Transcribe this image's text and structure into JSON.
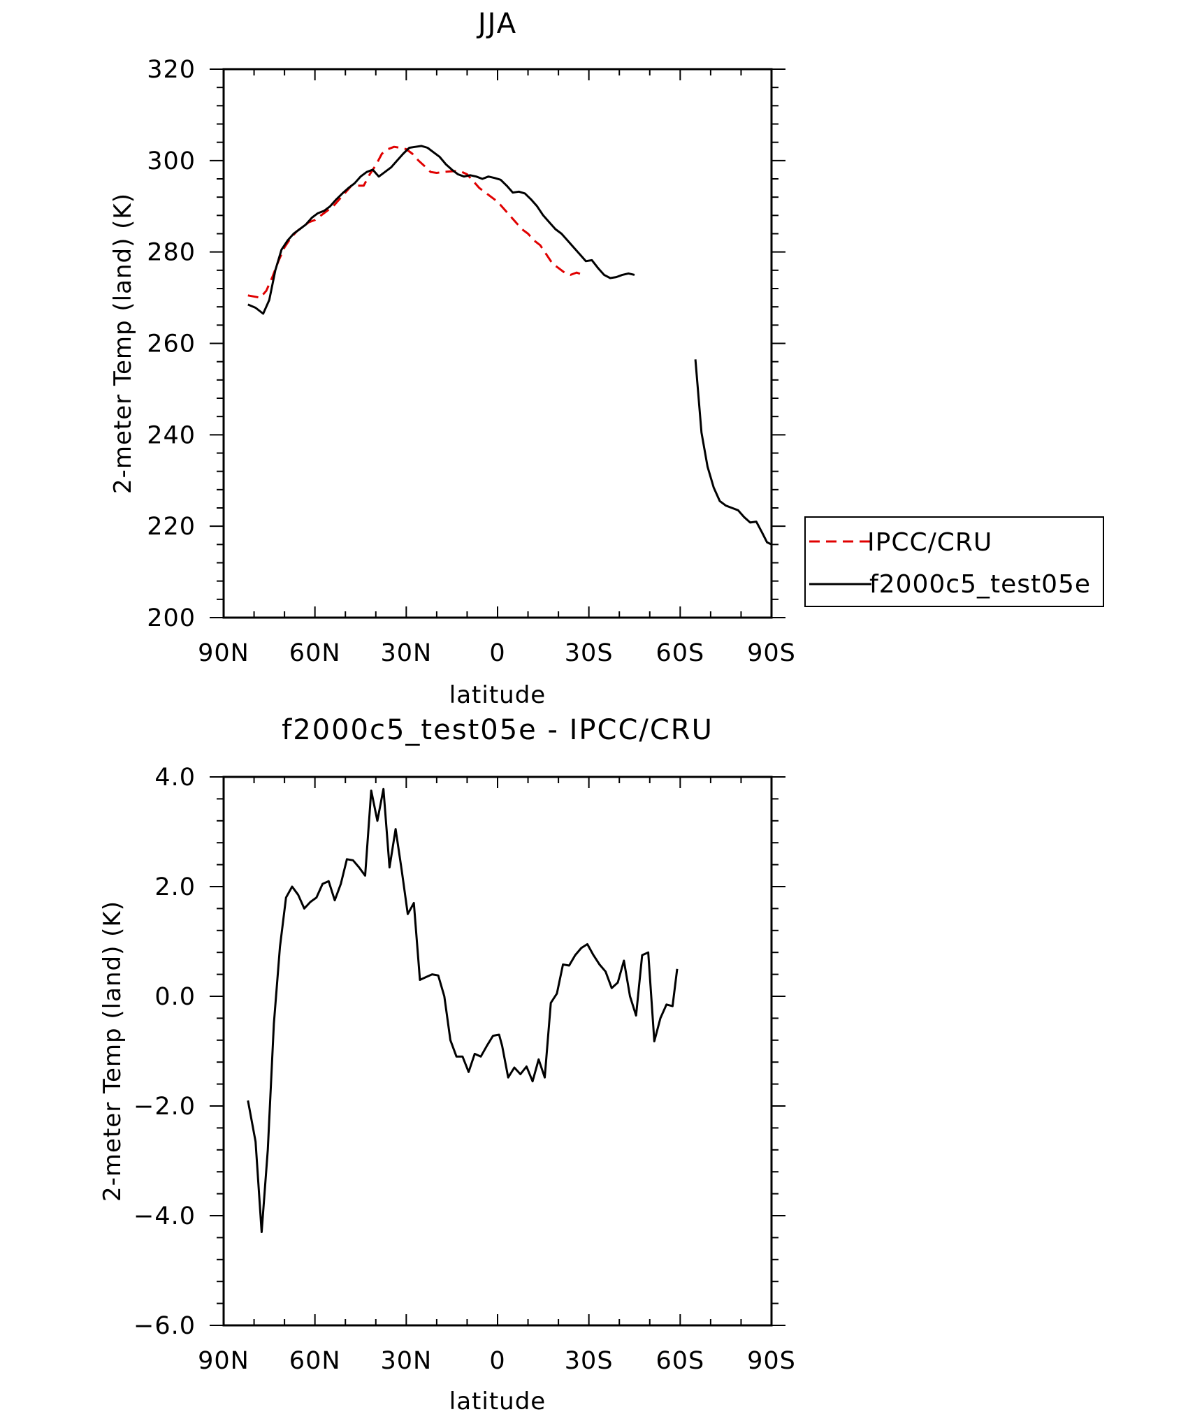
{
  "chart_data": [
    {
      "type": "line",
      "title": "JJA",
      "xlabel": "latitude",
      "ylabel": "2-meter Temp (land) (K)",
      "xlim": [
        90,
        -90
      ],
      "ylim": [
        200,
        320
      ],
      "x_ticks": [
        {
          "value": 90,
          "label": "90N"
        },
        {
          "value": 60,
          "label": "60N"
        },
        {
          "value": 30,
          "label": "30N"
        },
        {
          "value": 0,
          "label": "0"
        },
        {
          "value": -30,
          "label": "30S"
        },
        {
          "value": -60,
          "label": "60S"
        },
        {
          "value": -90,
          "label": "90S"
        }
      ],
      "y_ticks": [
        {
          "value": 200,
          "label": "200"
        },
        {
          "value": 220,
          "label": "220"
        },
        {
          "value": 240,
          "label": "240"
        },
        {
          "value": 260,
          "label": "260"
        },
        {
          "value": 280,
          "label": "280"
        },
        {
          "value": 300,
          "label": "300"
        },
        {
          "value": 320,
          "label": "320"
        }
      ],
      "legend": {
        "position": "right"
      },
      "series": [
        {
          "name": "IPCC/CRU",
          "color": "#e00000",
          "dash": "dashed",
          "points": [
            [
              82,
              270.5
            ],
            [
              78,
              270
            ],
            [
              76,
              271.5
            ],
            [
              74,
              274.5
            ],
            [
              72,
              278
            ],
            [
              70,
              281
            ],
            [
              68,
              283
            ],
            [
              66,
              284.5
            ],
            [
              64,
              285.5
            ],
            [
              62,
              286.5
            ],
            [
              60,
              287
            ],
            [
              58,
              288
            ],
            [
              56,
              289
            ],
            [
              54,
              290
            ],
            [
              52,
              291.5
            ],
            [
              50,
              293
            ],
            [
              48,
              294.5
            ],
            [
              46,
              294.5
            ],
            [
              44,
              294.5
            ],
            [
              42,
              297
            ],
            [
              40,
              299
            ],
            [
              38,
              301.5
            ],
            [
              36,
              302.5
            ],
            [
              34,
              303
            ],
            [
              32,
              302.8
            ],
            [
              30,
              302.5
            ],
            [
              28,
              301.5
            ],
            [
              26,
              300
            ],
            [
              24,
              298.8
            ],
            [
              22,
              297.5
            ],
            [
              20,
              297.3
            ],
            [
              18,
              297.5
            ],
            [
              16,
              297.6
            ],
            [
              14,
              297.7
            ],
            [
              12,
              297.6
            ],
            [
              10,
              297
            ],
            [
              8,
              295.5
            ],
            [
              6,
              294
            ],
            [
              4,
              293
            ],
            [
              2,
              292
            ],
            [
              0,
              291
            ],
            [
              -2,
              289.5
            ],
            [
              -4,
              288
            ],
            [
              -6,
              286.5
            ],
            [
              -8,
              285
            ],
            [
              -10,
              284
            ],
            [
              -12,
              282.5
            ],
            [
              -14,
              281.5
            ],
            [
              -16,
              279.5
            ],
            [
              -18,
              277.5
            ],
            [
              -20,
              276.5
            ],
            [
              -22,
              275.5
            ],
            [
              -24,
              275
            ],
            [
              -26,
              275.5
            ],
            [
              -28,
              275
            ]
          ]
        },
        {
          "name": "f2000c5_test05e",
          "color": "#000000",
          "dash": "solid",
          "points": [
            [
              82,
              268.5
            ],
            [
              79.5,
              267.8
            ],
            [
              77,
              266.5
            ],
            [
              75,
              269.5
            ],
            [
              73,
              276
            ],
            [
              71,
              280.5
            ],
            [
              69,
              282.5
            ],
            [
              67,
              284
            ],
            [
              65,
              285
            ],
            [
              63,
              286
            ],
            [
              61,
              287.5
            ],
            [
              59,
              288.5
            ],
            [
              57,
              289
            ],
            [
              55,
              290
            ],
            [
              53,
              291.5
            ],
            [
              51,
              292.8
            ],
            [
              49,
              294
            ],
            [
              47,
              295
            ],
            [
              45,
              296.5
            ],
            [
              43,
              297.5
            ],
            [
              41,
              298
            ],
            [
              39,
              296.5
            ],
            [
              37,
              297.5
            ],
            [
              35,
              298.5
            ],
            [
              33,
              300
            ],
            [
              31,
              301.5
            ],
            [
              29,
              302.8
            ],
            [
              27,
              303
            ],
            [
              25,
              303.2
            ],
            [
              23,
              302.8
            ],
            [
              21,
              301.8
            ],
            [
              19,
              300.8
            ],
            [
              17,
              299.2
            ],
            [
              15,
              298
            ],
            [
              13,
              297
            ],
            [
              11,
              296.5
            ],
            [
              9,
              296.8
            ],
            [
              7,
              296.5
            ],
            [
              5,
              296
            ],
            [
              3,
              296.5
            ],
            [
              1,
              296.2
            ],
            [
              -1,
              295.8
            ],
            [
              -3,
              294.5
            ],
            [
              -5,
              293
            ],
            [
              -7,
              293.2
            ],
            [
              -9,
              292.8
            ],
            [
              -11,
              291.5
            ],
            [
              -13,
              290
            ],
            [
              -15,
              288
            ],
            [
              -17,
              286.5
            ],
            [
              -19,
              285
            ],
            [
              -21,
              284
            ],
            [
              -23,
              282.5
            ],
            [
              -25,
              281
            ],
            [
              -27,
              279.5
            ],
            [
              -29,
              278
            ],
            [
              -31,
              278.2
            ],
            [
              -33,
              276.5
            ],
            [
              -35,
              275
            ],
            [
              -37,
              274.3
            ],
            [
              -39,
              274.5
            ],
            [
              -41,
              275
            ],
            [
              -43,
              275.3
            ],
            [
              -45,
              275
            ],
            [
              -65,
              256.5
            ],
            [
              -67,
              240.5
            ],
            [
              -69,
              233
            ],
            [
              -71,
              228.5
            ],
            [
              -73,
              225.5
            ],
            [
              -75,
              224.5
            ],
            [
              -77,
              224
            ],
            [
              -79,
              223.5
            ],
            [
              -81,
              222
            ],
            [
              -83,
              220.8
            ],
            [
              -85,
              221
            ],
            [
              -87,
              218.5
            ],
            [
              -88.5,
              216.5
            ],
            [
              -90,
              216
            ]
          ]
        }
      ]
    },
    {
      "type": "line",
      "title": "f2000c5_test05e - IPCC/CRU",
      "xlabel": "latitude",
      "ylabel": "2-meter Temp (land) (K)",
      "xlim": [
        90,
        -90
      ],
      "ylim": [
        -6.0,
        4.0
      ],
      "x_ticks": [
        {
          "value": 90,
          "label": "90N"
        },
        {
          "value": 60,
          "label": "60N"
        },
        {
          "value": 30,
          "label": "30N"
        },
        {
          "value": 0,
          "label": "0"
        },
        {
          "value": -30,
          "label": "30S"
        },
        {
          "value": -60,
          "label": "60S"
        },
        {
          "value": -90,
          "label": "90S"
        }
      ],
      "y_ticks": [
        {
          "value": -6.0,
          "label": "−6.0"
        },
        {
          "value": -4.0,
          "label": "−4.0"
        },
        {
          "value": -2.0,
          "label": "−2.0"
        },
        {
          "value": 0.0,
          "label": "0.0"
        },
        {
          "value": 2.0,
          "label": "2.0"
        },
        {
          "value": 4.0,
          "label": "4.0"
        }
      ],
      "series": [
        {
          "color": "#000000",
          "dash": "solid",
          "points": [
            [
              82,
              -1.9
            ],
            [
              79.5,
              -2.65
            ],
            [
              77.5,
              -4.3
            ],
            [
              75.5,
              -2.8
            ],
            [
              73.5,
              -0.5
            ],
            [
              71.5,
              0.9
            ],
            [
              69.5,
              1.8
            ],
            [
              67.5,
              2.0
            ],
            [
              65.5,
              1.85
            ],
            [
              63.5,
              1.6
            ],
            [
              61.5,
              1.72
            ],
            [
              59.5,
              1.8
            ],
            [
              57.5,
              2.05
            ],
            [
              55.5,
              2.1
            ],
            [
              53.5,
              1.75
            ],
            [
              51.5,
              2.05
            ],
            [
              49.5,
              2.5
            ],
            [
              47.5,
              2.48
            ],
            [
              45.5,
              2.35
            ],
            [
              43.5,
              2.2
            ],
            [
              41.5,
              3.75
            ],
            [
              39.5,
              3.2
            ],
            [
              37.5,
              3.78
            ],
            [
              35.5,
              2.35
            ],
            [
              33.5,
              3.05
            ],
            [
              31.5,
              2.3
            ],
            [
              29.5,
              1.5
            ],
            [
              27.5,
              1.7
            ],
            [
              25.5,
              0.3
            ],
            [
              23.5,
              0.35
            ],
            [
              21.5,
              0.4
            ],
            [
              19.5,
              0.38
            ],
            [
              17.5,
              0.0
            ],
            [
              15.5,
              -0.8
            ],
            [
              13.5,
              -1.1
            ],
            [
              11.5,
              -1.1
            ],
            [
              9.5,
              -1.38
            ],
            [
              7.5,
              -1.05
            ],
            [
              5.5,
              -1.1
            ],
            [
              3.5,
              -0.9
            ],
            [
              1.5,
              -0.72
            ],
            [
              -0.5,
              -0.7
            ],
            [
              -1.5,
              -0.9
            ],
            [
              -3.5,
              -1.48
            ],
            [
              -5.5,
              -1.3
            ],
            [
              -7.5,
              -1.42
            ],
            [
              -9.5,
              -1.28
            ],
            [
              -11.5,
              -1.55
            ],
            [
              -13.5,
              -1.15
            ],
            [
              -15.5,
              -1.48
            ],
            [
              -17.5,
              -0.12
            ],
            [
              -19.5,
              0.05
            ],
            [
              -21.5,
              0.58
            ],
            [
              -23.5,
              0.56
            ],
            [
              -25.5,
              0.75
            ],
            [
              -27.5,
              0.88
            ],
            [
              -29.5,
              0.95
            ],
            [
              -31.5,
              0.75
            ],
            [
              -33.5,
              0.58
            ],
            [
              -35.5,
              0.45
            ],
            [
              -37.5,
              0.15
            ],
            [
              -39.5,
              0.25
            ],
            [
              -41.5,
              0.65
            ],
            [
              -43.5,
              0.0
            ],
            [
              -45.5,
              -0.35
            ],
            [
              -47.5,
              0.75
            ],
            [
              -49.5,
              0.8
            ],
            [
              -51.5,
              -0.82
            ],
            [
              -53.5,
              -0.4
            ],
            [
              -55.5,
              -0.15
            ],
            [
              -57.5,
              -0.18
            ],
            [
              -59,
              0.5
            ]
          ]
        }
      ]
    }
  ]
}
